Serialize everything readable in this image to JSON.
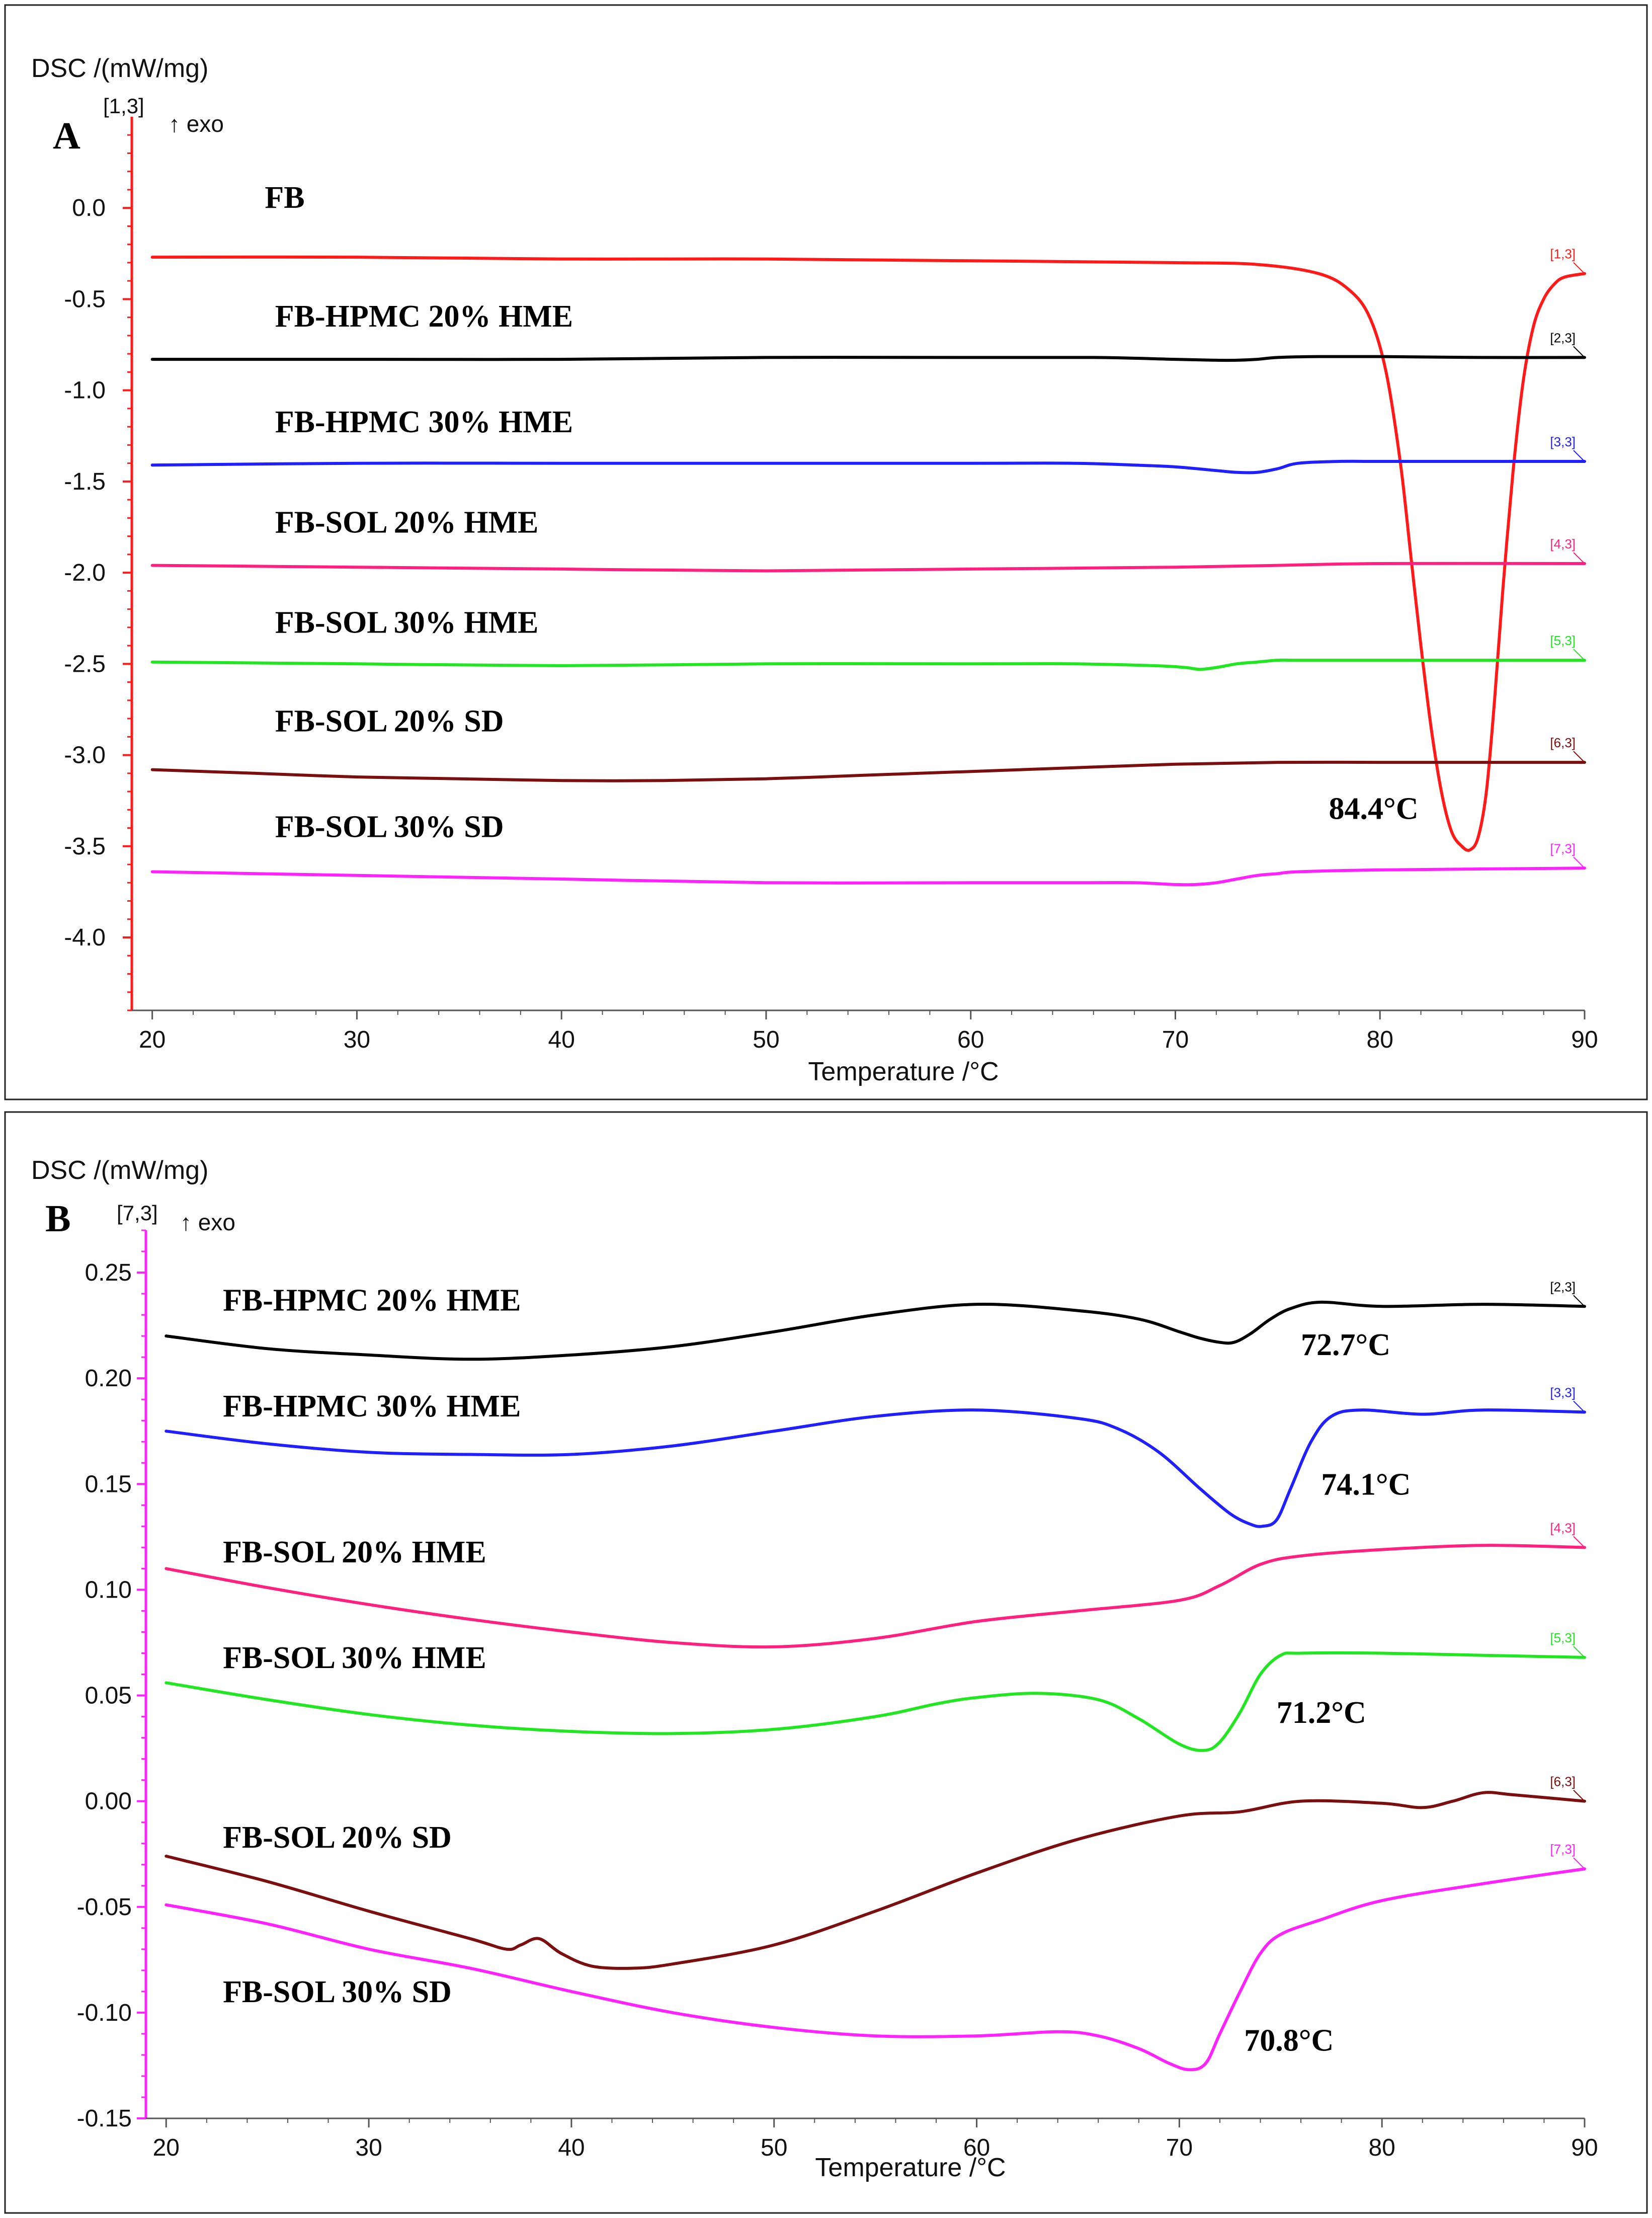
{
  "chart_data": [
    {
      "type": "line",
      "panel": "A",
      "ylabel": "DSC /(mW/mg)",
      "xlabel": "Temperature /°C",
      "exo_marker": "↑ exo",
      "axis_curve_tag": "[1,3]",
      "xlim": [
        19,
        90
      ],
      "ylim": [
        -4.4,
        0.5
      ],
      "xticks": [
        20,
        30,
        40,
        50,
        60,
        70,
        80,
        90
      ],
      "yticks": [
        0.0,
        -0.5,
        -1.0,
        -1.5,
        -2.0,
        -2.5,
        -3.0,
        -3.5,
        -4.0
      ],
      "ytick_labels": [
        "0.0",
        "-0.5",
        "-1.0",
        "-1.5",
        "-2.0",
        "-2.5",
        "-3.0",
        "-3.5",
        "-4.0"
      ],
      "series": [
        {
          "name": "FB",
          "color": "#ff1a1a",
          "tag": "[1,3]",
          "label_pos": [
            25.5,
            0.0
          ],
          "x": [
            20,
            30,
            40,
            50,
            60,
            70,
            74,
            77,
            78.5,
            79.5,
            80.3,
            81,
            81.5,
            82,
            82.5,
            83,
            83.5,
            84,
            84.4,
            84.8,
            85.2,
            85.6,
            86,
            86.5,
            87,
            87.5,
            88,
            88.5,
            89,
            90
          ],
          "y": [
            -0.27,
            -0.27,
            -0.28,
            -0.28,
            -0.29,
            -0.3,
            -0.31,
            -0.36,
            -0.45,
            -0.6,
            -0.9,
            -1.4,
            -1.9,
            -2.4,
            -2.85,
            -3.2,
            -3.42,
            -3.5,
            -3.52,
            -3.45,
            -3.2,
            -2.7,
            -2.1,
            -1.45,
            -0.95,
            -0.65,
            -0.5,
            -0.42,
            -0.38,
            -0.36
          ]
        },
        {
          "name": "FB-HPMC 20% HME",
          "color": "#000000",
          "tag": "[2,3]",
          "label_pos": [
            26,
            -0.65
          ],
          "x": [
            20,
            30,
            40,
            50,
            60,
            66,
            70,
            72,
            73,
            74,
            75,
            77,
            80,
            85,
            90
          ],
          "y": [
            -0.83,
            -0.83,
            -0.83,
            -0.82,
            -0.82,
            -0.82,
            -0.83,
            -0.835,
            -0.835,
            -0.83,
            -0.82,
            -0.815,
            -0.815,
            -0.82,
            -0.82
          ]
        },
        {
          "name": "FB-HPMC 30% HME",
          "color": "#1f1fff",
          "tag": "[3,3]",
          "label_pos": [
            26,
            -1.23
          ],
          "x": [
            20,
            30,
            40,
            50,
            60,
            65,
            68,
            70,
            72,
            73,
            74,
            75,
            76,
            78,
            80,
            85,
            90
          ],
          "y": [
            -1.41,
            -1.4,
            -1.4,
            -1.4,
            -1.4,
            -1.4,
            -1.41,
            -1.42,
            -1.44,
            -1.45,
            -1.45,
            -1.43,
            -1.4,
            -1.39,
            -1.39,
            -1.39,
            -1.39
          ]
        },
        {
          "name": "FB-SOL 20% HME",
          "color": "#ff2080",
          "tag": "[4,3]",
          "label_pos": [
            26,
            -1.78
          ],
          "x": [
            20,
            30,
            40,
            50,
            60,
            70,
            75,
            80,
            90
          ],
          "y": [
            -1.96,
            -1.97,
            -1.98,
            -1.99,
            -1.98,
            -1.97,
            -1.96,
            -1.95,
            -1.95
          ]
        },
        {
          "name": "FB-SOL 30% HME",
          "color": "#22e622",
          "tag": "[5,3]",
          "label_pos": [
            26,
            -2.33
          ],
          "x": [
            20,
            30,
            40,
            50,
            60,
            65,
            69,
            70.5,
            71.2,
            72,
            73,
            74,
            75,
            76,
            80,
            90
          ],
          "y": [
            -2.49,
            -2.5,
            -2.51,
            -2.5,
            -2.5,
            -2.5,
            -2.51,
            -2.52,
            -2.53,
            -2.52,
            -2.5,
            -2.49,
            -2.48,
            -2.48,
            -2.48,
            -2.48
          ]
        },
        {
          "name": "FB-SOL 20% SD",
          "color": "#7b0f0f",
          "tag": "[6,3]",
          "label_pos": [
            26,
            -2.87
          ],
          "x": [
            20,
            25,
            30,
            35,
            40,
            45,
            50,
            55,
            60,
            65,
            70,
            75,
            80,
            85,
            90
          ],
          "y": [
            -3.08,
            -3.1,
            -3.12,
            -3.13,
            -3.14,
            -3.14,
            -3.13,
            -3.11,
            -3.09,
            -3.07,
            -3.05,
            -3.04,
            -3.04,
            -3.04,
            -3.04
          ]
        },
        {
          "name": "FB-SOL 30% SD",
          "color": "#ff22ff",
          "tag": "[7,3]",
          "label_pos": [
            26,
            -3.45
          ],
          "x": [
            20,
            30,
            40,
            50,
            60,
            65,
            68,
            70,
            71,
            72,
            73,
            74,
            75,
            76,
            80,
            90
          ],
          "y": [
            -3.64,
            -3.66,
            -3.68,
            -3.7,
            -3.7,
            -3.7,
            -3.7,
            -3.71,
            -3.71,
            -3.7,
            -3.68,
            -3.66,
            -3.65,
            -3.64,
            -3.63,
            -3.62
          ]
        }
      ],
      "annotations": [
        {
          "text": "84.4°C",
          "x": 77.5,
          "y": -3.35
        }
      ]
    },
    {
      "type": "line",
      "panel": "B",
      "ylabel": "DSC /(mW/mg)",
      "xlabel": "Temperature /°C",
      "exo_marker": "↑ exo",
      "axis_curve_tag": "[7,3]",
      "xlim": [
        19,
        90
      ],
      "ylim": [
        -0.15,
        0.27
      ],
      "xticks": [
        20,
        30,
        40,
        50,
        60,
        70,
        80,
        90
      ],
      "yticks": [
        0.25,
        0.2,
        0.15,
        0.1,
        0.05,
        0.0,
        -0.05,
        -0.1,
        -0.15
      ],
      "ytick_labels": [
        "0.25",
        "0.20",
        "0.15",
        "0.10",
        "0.05",
        "0.00",
        "-0.05",
        "-0.10",
        "-0.15"
      ],
      "series": [
        {
          "name": "FB-HPMC 20% HME",
          "color": "#000000",
          "tag": "[2,3]",
          "label_pos": [
            22.8,
            0.232
          ],
          "x": [
            20,
            25,
            30,
            35,
            40,
            45,
            50,
            55,
            60,
            65,
            68,
            70,
            71,
            72,
            72.7,
            73.5,
            74.5,
            75.5,
            77,
            80,
            85,
            90
          ],
          "y": [
            0.22,
            0.214,
            0.211,
            0.209,
            0.211,
            0.215,
            0.222,
            0.23,
            0.235,
            0.232,
            0.228,
            0.222,
            0.219,
            0.217,
            0.217,
            0.221,
            0.228,
            0.233,
            0.236,
            0.234,
            0.235,
            0.234
          ]
        },
        {
          "name": "FB-HPMC 30% HME",
          "color": "#1f1fff",
          "tag": "[3,3]",
          "label_pos": [
            22.8,
            0.182
          ],
          "x": [
            20,
            25,
            30,
            35,
            40,
            45,
            50,
            55,
            60,
            65,
            67,
            69,
            71,
            72.5,
            73.5,
            74.1,
            74.8,
            75.5,
            76.5,
            77.5,
            79,
            82,
            85,
            90
          ],
          "y": [
            0.175,
            0.169,
            0.165,
            0.164,
            0.164,
            0.168,
            0.175,
            0.182,
            0.185,
            0.181,
            0.176,
            0.165,
            0.148,
            0.136,
            0.131,
            0.13,
            0.133,
            0.148,
            0.17,
            0.182,
            0.185,
            0.183,
            0.185,
            0.184
          ]
        },
        {
          "name": "FB-SOL 20% HME",
          "color": "#ff2080",
          "tag": "[4,3]",
          "label_pos": [
            22.8,
            0.113
          ],
          "x": [
            20,
            25,
            30,
            35,
            40,
            45,
            50,
            55,
            60,
            65,
            70,
            72,
            74,
            76,
            80,
            85,
            90
          ],
          "y": [
            0.11,
            0.101,
            0.093,
            0.086,
            0.08,
            0.075,
            0.073,
            0.077,
            0.085,
            0.09,
            0.095,
            0.102,
            0.112,
            0.116,
            0.119,
            0.121,
            0.12
          ]
        },
        {
          "name": "FB-SOL 30% HME",
          "color": "#22e622",
          "tag": "[5,3]",
          "label_pos": [
            22.8,
            0.063
          ],
          "x": [
            20,
            25,
            30,
            35,
            40,
            45,
            50,
            55,
            58,
            60,
            63,
            66,
            68,
            70,
            71.2,
            72,
            73,
            74,
            75,
            76,
            80,
            85,
            90
          ],
          "y": [
            0.056,
            0.048,
            0.041,
            0.036,
            0.033,
            0.032,
            0.034,
            0.04,
            0.046,
            0.049,
            0.051,
            0.048,
            0.039,
            0.027,
            0.024,
            0.028,
            0.042,
            0.06,
            0.069,
            0.07,
            0.07,
            0.069,
            0.068
          ]
        },
        {
          "name": "FB-SOL 20% SD",
          "color": "#7b0f0f",
          "tag": "[6,3]",
          "label_pos": [
            22.8,
            -0.022
          ],
          "x": [
            20,
            25,
            30,
            35,
            36.8,
            37.5,
            38.4,
            39.5,
            41,
            43,
            45,
            50,
            55,
            60,
            65,
            70,
            73,
            76,
            80,
            82,
            83.5,
            85,
            86.5,
            90
          ],
          "y": [
            -0.026,
            -0.038,
            -0.052,
            -0.065,
            -0.07,
            -0.068,
            -0.065,
            -0.072,
            -0.078,
            -0.079,
            -0.077,
            -0.068,
            -0.052,
            -0.034,
            -0.018,
            -0.007,
            -0.005,
            0.0,
            -0.001,
            -0.003,
            0.0,
            0.004,
            0.003,
            0.0
          ]
        },
        {
          "name": "FB-SOL 30% SD",
          "color": "#ff22ff",
          "tag": "[7,3]",
          "label_pos": [
            22.8,
            -0.095
          ],
          "x": [
            20,
            25,
            30,
            35,
            40,
            45,
            50,
            55,
            60,
            64,
            66,
            68,
            69.5,
            70.5,
            71.3,
            72,
            73,
            74,
            75,
            77,
            80,
            85,
            90
          ],
          "y": [
            -0.049,
            -0.058,
            -0.07,
            -0.079,
            -0.09,
            -0.1,
            -0.107,
            -0.111,
            -0.111,
            -0.109,
            -0.111,
            -0.117,
            -0.124,
            -0.127,
            -0.124,
            -0.11,
            -0.09,
            -0.072,
            -0.063,
            -0.056,
            -0.047,
            -0.039,
            -0.032
          ]
        }
      ],
      "annotations": [
        {
          "text": "72.7°C",
          "x": 76,
          "y": 0.211
        },
        {
          "text": "74.1°C",
          "x": 77,
          "y": 0.145
        },
        {
          "text": "71.2°C",
          "x": 74.8,
          "y": 0.037
        },
        {
          "text": "70.8°C",
          "x": 73.2,
          "y": -0.118
        }
      ]
    }
  ]
}
